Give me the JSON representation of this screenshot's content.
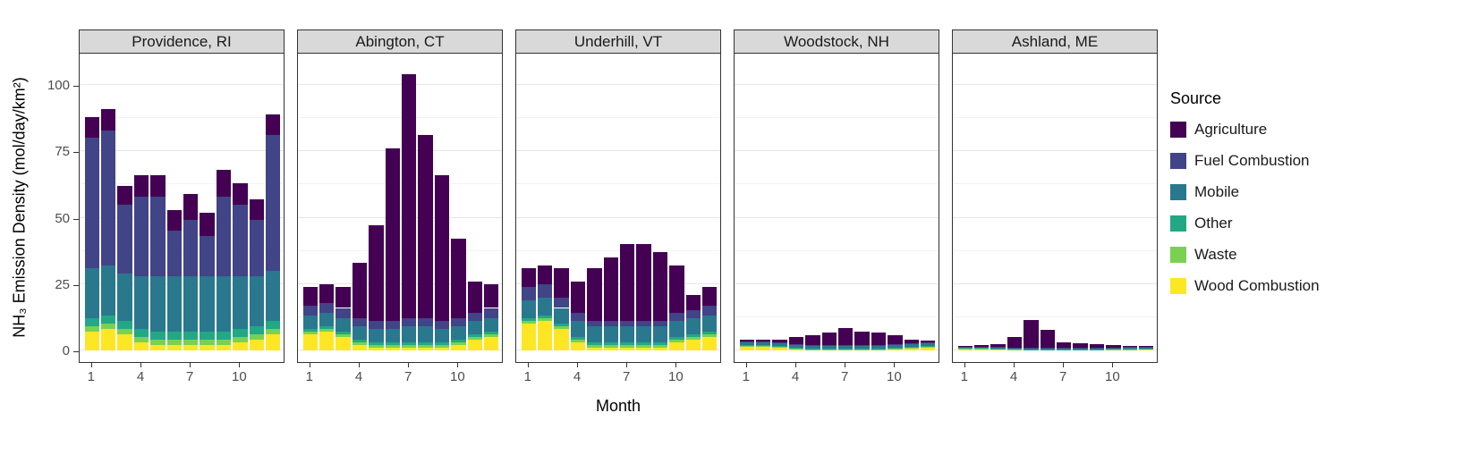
{
  "chart_data": {
    "type": "bar",
    "stacked": true,
    "title": "",
    "xlabel": "Month",
    "ylabel": "NH₃ Emission Density (mol/day/km²)",
    "legend_title": "Source",
    "legend_position": "right",
    "grid": true,
    "months": [
      1,
      2,
      3,
      4,
      5,
      6,
      7,
      8,
      9,
      10,
      11,
      12
    ],
    "x_ticks": [
      1,
      4,
      7,
      10
    ],
    "y_ticks": [
      0,
      25,
      50,
      75,
      100
    ],
    "y_minor_ticks": [
      12.5,
      37.5,
      62.5,
      87.5
    ],
    "ylim": [
      0,
      112
    ],
    "stack_order_bottom_to_top": [
      "Wood Combustion",
      "Waste",
      "Other",
      "Mobile",
      "Fuel Combustion",
      "Agriculture"
    ],
    "sources": [
      {
        "name": "Agriculture",
        "color": "#440154"
      },
      {
        "name": "Fuel Combustion",
        "color": "#414487"
      },
      {
        "name": "Mobile",
        "color": "#2a788e"
      },
      {
        "name": "Other",
        "color": "#22a884"
      },
      {
        "name": "Waste",
        "color": "#7ad151"
      },
      {
        "name": "Wood Combustion",
        "color": "#fde725"
      }
    ],
    "layout": {
      "strip_bg": "#d9d9d9",
      "panel_border": "#333333",
      "grid_major": "#e6e6e6",
      "grid_minor": "#f3f3f3"
    },
    "facets": [
      {
        "label": "Providence, RI",
        "values": {
          "Agriculture": [
            8,
            8,
            7,
            8,
            8,
            8,
            10,
            9,
            10,
            8,
            8,
            8
          ],
          "Fuel Combustion": [
            49,
            51,
            26,
            30,
            30,
            17,
            21,
            15,
            30,
            27,
            21,
            51
          ],
          "Mobile": [
            19,
            19,
            18,
            20,
            21,
            21,
            21,
            21,
            21,
            20,
            19,
            19
          ],
          "Other": [
            3,
            3,
            3,
            3,
            3,
            3,
            3,
            3,
            3,
            3,
            3,
            3
          ],
          "Waste": [
            2,
            2,
            2,
            2,
            2,
            2,
            2,
            2,
            2,
            2,
            2,
            2
          ],
          "Wood Combustion": [
            7,
            8,
            6,
            3,
            2,
            2,
            2,
            2,
            2,
            3,
            4,
            6
          ]
        }
      },
      {
        "label": "Abington, CT",
        "values": {
          "Agriculture": [
            7,
            7,
            8,
            21,
            36,
            65,
            92,
            69,
            55,
            30,
            12,
            9
          ],
          "Fuel Combustion": [
            4,
            4,
            4,
            3,
            3,
            3,
            3,
            3,
            3,
            3,
            3,
            4
          ],
          "Mobile": [
            5,
            5,
            5,
            5,
            5,
            5,
            6,
            6,
            5,
            5,
            5,
            5
          ],
          "Other": [
            1,
            1,
            1,
            1,
            1,
            1,
            1,
            1,
            1,
            1,
            1,
            1
          ],
          "Waste": [
            1,
            1,
            1,
            1,
            1,
            1,
            1,
            1,
            1,
            1,
            1,
            1
          ],
          "Wood Combustion": [
            6,
            7,
            5,
            2,
            1,
            1,
            1,
            1,
            1,
            2,
            4,
            5
          ]
        }
      },
      {
        "label": "Underhill, VT",
        "values": {
          "Agriculture": [
            7,
            7,
            11,
            12,
            20,
            24,
            29,
            29,
            26,
            18,
            6,
            7
          ],
          "Fuel Combustion": [
            5,
            5,
            4,
            3,
            2,
            2,
            2,
            2,
            2,
            3,
            3,
            4
          ],
          "Mobile": [
            7,
            7,
            6,
            6,
            6,
            6,
            6,
            6,
            6,
            6,
            6,
            6
          ],
          "Other": [
            1,
            1,
            1,
            1,
            1,
            1,
            1,
            1,
            1,
            1,
            1,
            1
          ],
          "Waste": [
            1,
            1,
            1,
            1,
            1,
            1,
            1,
            1,
            1,
            1,
            1,
            1
          ],
          "Wood Combustion": [
            10,
            11,
            8,
            3,
            1,
            1,
            1,
            1,
            1,
            3,
            4,
            5
          ]
        }
      },
      {
        "label": "Woodstock, NH",
        "values": {
          "Agriculture": [
            0.5,
            0.5,
            1.1,
            2.6,
            3.6,
            4.6,
            6.4,
            5.1,
            4.6,
            3.3,
            1.1,
            0.6
          ],
          "Fuel Combustion": [
            0.5,
            0.5,
            0.4,
            0.3,
            0.3,
            0.3,
            0.3,
            0.3,
            0.3,
            0.3,
            0.4,
            0.5
          ],
          "Mobile": [
            1,
            1,
            1,
            1,
            1,
            1,
            1,
            1,
            1,
            1,
            1,
            1
          ],
          "Other": [
            0.3,
            0.3,
            0.3,
            0.3,
            0.3,
            0.3,
            0.3,
            0.3,
            0.3,
            0.3,
            0.3,
            0.3
          ],
          "Waste": [
            0.2,
            0.2,
            0.2,
            0.2,
            0.2,
            0.2,
            0.2,
            0.2,
            0.2,
            0.2,
            0.2,
            0.2
          ],
          "Wood Combustion": [
            1.5,
            1.5,
            1.2,
            0.6,
            0.3,
            0.3,
            0.3,
            0.3,
            0.3,
            0.6,
            0.9,
            1.2
          ]
        }
      },
      {
        "label": "Ashland, ME",
        "values": {
          "Agriculture": [
            0.3,
            0.4,
            0.9,
            3.9,
            10.5,
            6.7,
            2.2,
            1.6,
            1.5,
            1.0,
            0.5,
            0.4
          ],
          "Fuel Combustion": [
            0.2,
            0.2,
            0.2,
            0.2,
            0.2,
            0.2,
            0.2,
            0.2,
            0.2,
            0.2,
            0.2,
            0.2
          ],
          "Mobile": [
            0.3,
            0.3,
            0.3,
            0.3,
            0.3,
            0.3,
            0.3,
            0.3,
            0.3,
            0.3,
            0.3,
            0.3
          ],
          "Other": [
            0.2,
            0.2,
            0.2,
            0.2,
            0.2,
            0.2,
            0.2,
            0.2,
            0.2,
            0.2,
            0.2,
            0.2
          ],
          "Waste": [
            0.1,
            0.1,
            0.1,
            0.1,
            0.1,
            0.1,
            0.1,
            0.1,
            0.1,
            0.1,
            0.1,
            0.1
          ],
          "Wood Combustion": [
            0.6,
            0.7,
            0.5,
            0.3,
            0.2,
            0.2,
            0.2,
            0.2,
            0.2,
            0.3,
            0.4,
            0.5
          ]
        }
      }
    ]
  }
}
